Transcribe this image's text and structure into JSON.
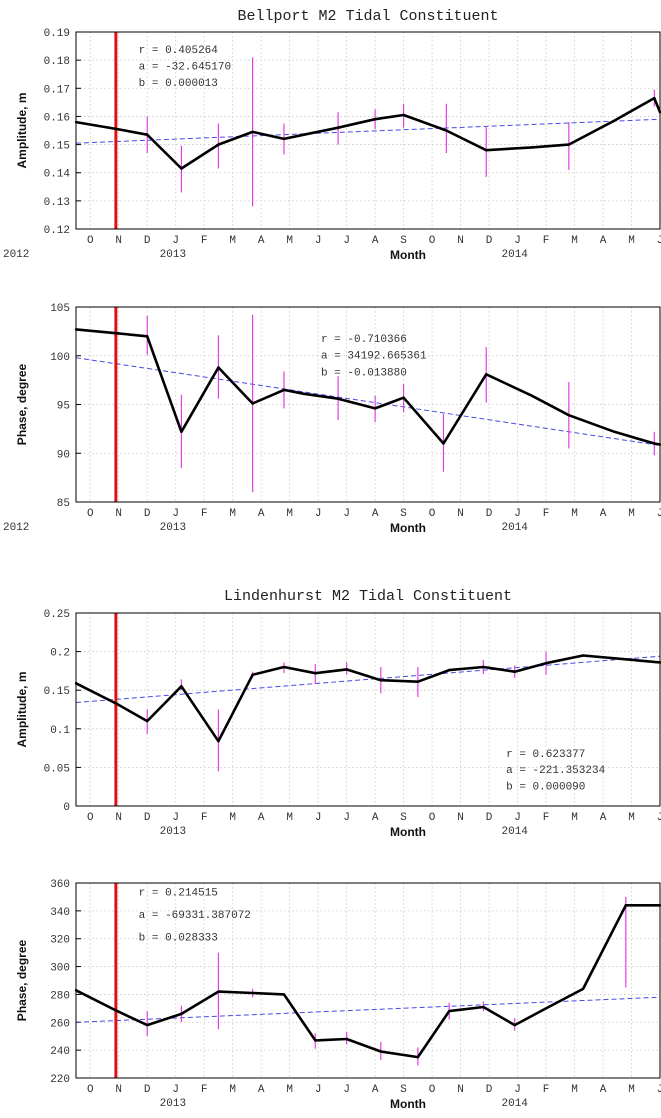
{
  "chart_data": [
    {
      "type": "line",
      "title": "Bellport M2 Tidal Constituent",
      "xlabel": "Month",
      "ylabel": "Amplitude, m",
      "x_tick_labels": [
        "O",
        "N",
        "D",
        "J",
        "F",
        "M",
        "A",
        "M",
        "J",
        "J",
        "A",
        "S",
        "O",
        "N",
        "D",
        "J",
        "F",
        "M",
        "A",
        "M",
        "J"
      ],
      "year_labels": [
        {
          "label": "2012",
          "month": -2.6
        },
        {
          "label": "2013",
          "month": 2.9
        },
        {
          "label": "2014",
          "month": 14.9
        }
      ],
      "xlim": [
        -0.5,
        20
      ],
      "ylim": [
        0.12,
        0.19
      ],
      "yticks": [
        0.12,
        0.13,
        0.14,
        0.15,
        0.16,
        0.17,
        0.18,
        0.19
      ],
      "ytick_labels": [
        "0.12",
        "0.13",
        "0.14",
        "0.15",
        "0.16",
        "0.17",
        "0.18",
        "0.19"
      ],
      "grid": true,
      "marker_month": 0.9,
      "annotations": [
        "r = 0.405264",
        "a = -32.645170",
        "b = 0.000013"
      ],
      "annotation_pos": {
        "month": 1.7,
        "value": 0.1825,
        "step": 0.0058
      },
      "trend": {
        "x": [
          -0.5,
          20
        ],
        "y": [
          0.1505,
          0.159
        ]
      },
      "series": [
        {
          "x": [
            -0.5,
            0.95,
            2,
            3.2,
            4.5,
            5.7,
            6.8,
            7.5,
            8.7,
            10,
            11,
            12.5,
            13.9,
            15.5,
            16.8,
            18.4,
            19.8,
            20
          ],
          "y": [
            0.158,
            0.1555,
            0.1535,
            0.1415,
            0.15,
            0.1545,
            0.152,
            0.1535,
            0.156,
            0.159,
            0.1605,
            0.155,
            0.148,
            0.149,
            0.15,
            0.1585,
            0.1665,
            0.1615
          ],
          "err": [
            [
              3.2,
              0.133,
              0.1495
            ],
            [
              6.8,
              0.1465,
              0.1575
            ],
            [
              5.7,
              0.128,
              0.181
            ],
            [
              4.5,
              0.1415,
              0.1575
            ],
            [
              2,
              0.147,
              0.16
            ],
            [
              8.7,
              0.15,
              0.1615
            ],
            [
              10,
              0.1555,
              0.1625
            ],
            [
              11,
              0.156,
              0.1645
            ],
            [
              12.5,
              0.147,
              0.1645
            ],
            [
              13.9,
              0.1385,
              0.1565
            ],
            [
              16.8,
              0.141,
              0.158
            ],
            [
              19.8,
              0.1635,
              0.1695
            ]
          ]
        }
      ]
    },
    {
      "type": "line",
      "title": "",
      "xlabel": "Month",
      "ylabel": "Phase, degree",
      "x_tick_labels": [
        "O",
        "N",
        "D",
        "J",
        "F",
        "M",
        "A",
        "M",
        "J",
        "J",
        "A",
        "S",
        "O",
        "N",
        "D",
        "J",
        "F",
        "M",
        "A",
        "M",
        "J"
      ],
      "year_labels": [
        {
          "label": "2012",
          "month": -2.6
        },
        {
          "label": "2013",
          "month": 2.9
        },
        {
          "label": "2014",
          "month": 14.9
        }
      ],
      "xlim": [
        -0.5,
        20
      ],
      "ylim": [
        85,
        105
      ],
      "yticks": [
        85,
        90,
        95,
        100,
        105
      ],
      "ytick_labels": [
        "85",
        "90",
        "95",
        "100",
        "105"
      ],
      "grid": true,
      "marker_month": 0.9,
      "annotations": [
        "r = -0.710366",
        "a = 34192.665361",
        "b = -0.013880"
      ],
      "annotation_pos": {
        "month": 8.1,
        "value": 101.4,
        "step": 1.7
      },
      "trend": {
        "x": [
          -0.5,
          20
        ],
        "y": [
          99.8,
          90.8
        ]
      },
      "series": [
        {
          "x": [
            -0.5,
            0.95,
            2,
            3.2,
            4.5,
            5.7,
            6.8,
            7.5,
            8.7,
            10,
            11,
            12.4,
            13.9,
            15.5,
            16.8,
            18.4,
            19.8,
            20
          ],
          "y": [
            102.7,
            102.3,
            102.0,
            92.2,
            98.8,
            95.1,
            96.5,
            96.1,
            95.6,
            94.6,
            95.7,
            91.0,
            98.1,
            95.9,
            93.9,
            92.2,
            91.0,
            90.9
          ],
          "err": [
            [
              2,
              100.1,
              104.1
            ],
            [
              3.2,
              88.5,
              96.0
            ],
            [
              4.5,
              95.6,
              102.1
            ],
            [
              5.7,
              86.0,
              104.2
            ],
            [
              6.8,
              94.6,
              98.4
            ],
            [
              8.7,
              93.4,
              97.9
            ],
            [
              10,
              93.2,
              95.9
            ],
            [
              11,
              94.2,
              97.1
            ],
            [
              12.4,
              88.1,
              94.0
            ],
            [
              13.9,
              95.2,
              100.9
            ],
            [
              16.8,
              90.5,
              97.3
            ],
            [
              19.8,
              89.8,
              92.2
            ]
          ]
        }
      ]
    },
    {
      "type": "line",
      "title": "Lindenhurst M2 Tidal Constituent",
      "xlabel": "Month",
      "ylabel": "Amplitude, m",
      "x_tick_labels": [
        "O",
        "N",
        "D",
        "J",
        "F",
        "M",
        "A",
        "M",
        "J",
        "J",
        "A",
        "S",
        "O",
        "N",
        "D",
        "J",
        "F",
        "M",
        "A",
        "M",
        "J"
      ],
      "year_labels": [
        {
          "label": "2013",
          "month": 2.9
        },
        {
          "label": "2014",
          "month": 14.9
        }
      ],
      "xlim": [
        -0.5,
        20
      ],
      "ylim": [
        0,
        0.25
      ],
      "yticks": [
        0,
        0.05,
        0.1,
        0.15,
        0.2,
        0.25
      ],
      "ytick_labels": [
        "0",
        "0.05",
        "0.1",
        "0.15",
        "0.2",
        "0.25"
      ],
      "grid": true,
      "marker_month": 0.9,
      "annotations": [
        "r = 0.623377",
        "a = -221.353234",
        "b = 0.000090"
      ],
      "annotation_pos": {
        "month": 14.6,
        "value": 0.0635,
        "step": 0.021
      },
      "trend": {
        "x": [
          -0.5,
          20
        ],
        "y": [
          0.134,
          0.194
        ]
      },
      "series": [
        {
          "x": [
            -0.5,
            0.95,
            2,
            3.2,
            4.5,
            5.7,
            6.8,
            7.9,
            9,
            10.2,
            11.5,
            12.6,
            13.8,
            14.9,
            16,
            17.3,
            18.8,
            20
          ],
          "y": [
            0.159,
            0.132,
            0.11,
            0.155,
            0.084,
            0.17,
            0.18,
            0.172,
            0.177,
            0.163,
            0.161,
            0.176,
            0.18,
            0.174,
            0.185,
            0.195,
            0.19,
            0.186
          ],
          "err": [
            [
              2,
              0.093,
              0.125
            ],
            [
              3.2,
              0.15,
              0.164
            ],
            [
              4.5,
              0.045,
              0.125
            ],
            [
              5.7,
              0.166,
              0.174
            ],
            [
              6.8,
              0.172,
              0.186
            ],
            [
              7.9,
              0.158,
              0.184
            ],
            [
              9,
              0.17,
              0.186
            ],
            [
              10.2,
              0.146,
              0.18
            ],
            [
              11.5,
              0.141,
              0.18
            ],
            [
              13.8,
              0.171,
              0.189
            ],
            [
              14.9,
              0.166,
              0.182
            ],
            [
              16,
              0.17,
              0.2
            ]
          ]
        }
      ]
    },
    {
      "type": "line",
      "title": "",
      "xlabel": "Month",
      "ylabel": "Phase, degree",
      "x_tick_labels": [
        "O",
        "N",
        "D",
        "J",
        "F",
        "M",
        "A",
        "M",
        "J",
        "J",
        "A",
        "S",
        "O",
        "N",
        "D",
        "J",
        "F",
        "M",
        "A",
        "M",
        "J"
      ],
      "year_labels": [
        {
          "label": "2013",
          "month": 2.9
        },
        {
          "label": "2014",
          "month": 14.9
        }
      ],
      "xlim": [
        -0.5,
        20
      ],
      "ylim": [
        220,
        360
      ],
      "yticks": [
        220,
        240,
        260,
        280,
        300,
        320,
        340,
        360
      ],
      "ytick_labels": [
        "220",
        "240",
        "260",
        "280",
        "300",
        "320",
        "340",
        "360"
      ],
      "grid": true,
      "marker_month": 0.9,
      "annotations": [
        "r = 0.214515",
        "a = -69331.387072",
        "b = 0.028333"
      ],
      "annotation_pos": {
        "month": 1.7,
        "value": 351,
        "step": 16.2
      },
      "trend": {
        "x": [
          -0.5,
          20
        ],
        "y": [
          260,
          278
        ]
      },
      "series": [
        {
          "x": [
            -0.5,
            0.95,
            2,
            3.2,
            4.5,
            5.7,
            6.8,
            7.9,
            9,
            10.2,
            11.5,
            12.6,
            13.8,
            14.9,
            16,
            17.3,
            18.8,
            20
          ],
          "y": [
            283,
            268,
            258,
            266,
            282,
            281,
            280,
            247,
            248,
            239,
            235,
            268,
            271,
            258,
            270,
            284,
            344,
            344
          ],
          "err": [
            [
              2,
              250,
              268
            ],
            [
              3.2,
              260,
              272
            ],
            [
              4.5,
              255,
              310
            ],
            [
              5.7,
              278,
              284
            ],
            [
              7.9,
              241,
              252
            ],
            [
              9,
              244,
              253
            ],
            [
              10.2,
              233,
              246
            ],
            [
              11.5,
              229,
              242
            ],
            [
              12.6,
              262,
              274
            ],
            [
              13.8,
              268,
              275
            ],
            [
              14.9,
              254,
              263
            ],
            [
              18.8,
              285,
              350
            ]
          ]
        }
      ]
    }
  ]
}
